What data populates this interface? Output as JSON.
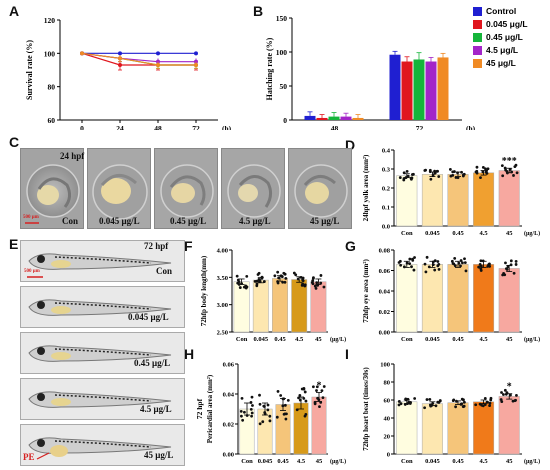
{
  "panel_letters": {
    "A": "A",
    "B": "B",
    "C": "C",
    "D": "D",
    "E": "E",
    "F": "F",
    "G": "G",
    "H": "H",
    "I": "I"
  },
  "legend": {
    "items": [
      {
        "label": "Control",
        "color": "#1f1fd1"
      },
      {
        "label": "0.045 μg/L",
        "color": "#e0161e"
      },
      {
        "label": "0.45 μg/L",
        "color": "#15b53a"
      },
      {
        "label": "4.5 μg/L",
        "color": "#a325c8"
      },
      {
        "label": "45 μg/L",
        "color": "#f08a24"
      }
    ]
  },
  "panel_C": {
    "time_label": "24 hpf",
    "scale_label": "500 μm",
    "labels": [
      "Con",
      "0.045 μg/L",
      "0.45 μg/L",
      "4.5 μg/L",
      "45 μg/L"
    ]
  },
  "panel_E": {
    "time_label": "72 hpf",
    "scale_label": "500 μm",
    "pe_label": "PE",
    "labels": [
      "Con",
      "0.045 μg/L",
      "0.45 μg/L",
      "4.5 μg/L",
      "45 μg/L"
    ]
  },
  "chart_data": [
    {
      "id": "A",
      "type": "line",
      "x": [
        0,
        24,
        48,
        72
      ],
      "x_ticks": [
        "0",
        "24",
        "48",
        "72"
      ],
      "x_unit": "(h)",
      "ylabel": "Survival rate (%)",
      "ylim": [
        60,
        120
      ],
      "yticks": [
        60,
        80,
        100,
        120
      ],
      "series": [
        {
          "name": "Control",
          "color": "#1f1fd1",
          "values": [
            100,
            100,
            100,
            100
          ],
          "err": [
            0,
            0,
            0,
            0
          ]
        },
        {
          "name": "0.045 μg/L",
          "color": "#e0161e",
          "values": [
            100,
            93,
            93,
            93
          ],
          "err": [
            0,
            3,
            3,
            3
          ]
        },
        {
          "name": "0.45 μg/L",
          "color": "#15b53a",
          "values": [
            100,
            97,
            93,
            93
          ],
          "err": [
            0,
            2,
            2,
            2
          ]
        },
        {
          "name": "4.5 μg/L",
          "color": "#a325c8",
          "values": [
            100,
            97,
            95,
            95
          ],
          "err": [
            0,
            2,
            2,
            2
          ]
        },
        {
          "name": "45 μg/L",
          "color": "#f08a24",
          "values": [
            100,
            97,
            93,
            93
          ],
          "err": [
            0,
            2,
            2,
            2
          ]
        }
      ]
    },
    {
      "id": "B",
      "type": "bar",
      "categories": [
        "48",
        "72"
      ],
      "x_unit": "(h)",
      "ylabel": "Hatching rate (%)",
      "ylim": [
        0,
        150
      ],
      "yticks": [
        0,
        50,
        100,
        150
      ],
      "series": [
        {
          "name": "Control",
          "color": "#1f1fd1",
          "values": [
            6,
            96
          ],
          "err": [
            6,
            5
          ]
        },
        {
          "name": "0.045 μg/L",
          "color": "#e0161e",
          "values": [
            3,
            86
          ],
          "err": [
            5,
            7
          ]
        },
        {
          "name": "0.45 μg/L",
          "color": "#15b53a",
          "values": [
            5,
            89
          ],
          "err": [
            6,
            10
          ]
        },
        {
          "name": "4.5 μg/L",
          "color": "#a325c8",
          "values": [
            5,
            86
          ],
          "err": [
            5,
            6
          ]
        },
        {
          "name": "45 μg/L",
          "color": "#f08a24",
          "values": [
            3,
            92
          ],
          "err": [
            5,
            6
          ]
        }
      ]
    },
    {
      "id": "D",
      "type": "bar",
      "categories": [
        "Con",
        "0.045",
        "0.45",
        "4.5",
        "45"
      ],
      "x_unit": "(μg/L)",
      "ylabel": "24hpf yolk area (mm²)",
      "ylim": [
        0,
        0.4
      ],
      "yticks": [
        0.0,
        0.1,
        0.2,
        0.3,
        0.4
      ],
      "decimals": 1,
      "colors": [
        "#fffde0",
        "#fde7b0",
        "#f5c57a",
        "#f0a030",
        "#f7a8a0"
      ],
      "values": [
        0.265,
        0.272,
        0.272,
        0.28,
        0.292
      ],
      "err": [
        0.01,
        0.012,
        0.012,
        0.012,
        0.012
      ],
      "annotations": [
        "",
        "",
        "",
        "",
        "***"
      ]
    },
    {
      "id": "F",
      "type": "bar",
      "categories": [
        "Con",
        "0.045",
        "0.45",
        "4.5",
        "45"
      ],
      "x_unit": "(μg/L)",
      "ylabel": "72hfp body length(mm)",
      "ylim": [
        2.5,
        4.0
      ],
      "yticks": [
        2.5,
        3.0,
        3.5,
        4.0
      ],
      "decimals": 2,
      "colors": [
        "#fffde0",
        "#fde7b0",
        "#f5c57a",
        "#d79a1a",
        "#f7a8a0"
      ],
      "values": [
        3.42,
        3.45,
        3.48,
        3.46,
        3.42
      ],
      "err": [
        0.05,
        0.05,
        0.05,
        0.05,
        0.05
      ],
      "annotations": [
        "",
        "",
        "",
        "",
        ""
      ]
    },
    {
      "id": "G",
      "type": "bar",
      "categories": [
        "Con",
        "0.045",
        "0.45",
        "4.5",
        "45"
      ],
      "x_unit": "(μg/L)",
      "ylabel": "72hfp eye area (mm²)",
      "ylim": [
        0,
        0.08
      ],
      "yticks": [
        0.0,
        0.02,
        0.04,
        0.06,
        0.08
      ],
      "decimals": 2,
      "colors": [
        "#fffde0",
        "#fde7b0",
        "#f5c57a",
        "#f07a1a",
        "#f7a8a0"
      ],
      "values": [
        0.066,
        0.066,
        0.066,
        0.066,
        0.062
      ],
      "err": [
        0.003,
        0.003,
        0.003,
        0.003,
        0.003
      ],
      "annotations": [
        "",
        "",
        "",
        "",
        ""
      ]
    },
    {
      "id": "H",
      "type": "bar",
      "categories": [
        "Con",
        "0.045",
        "0.45",
        "4.5",
        "45"
      ],
      "x_unit": "(μg/L)",
      "ylabel": "Pericardial area (mm²)",
      "ylabel2": "72 hpf",
      "ylim": [
        0,
        0.06
      ],
      "yticks": [
        0.0,
        0.02,
        0.04,
        0.06
      ],
      "decimals": 2,
      "colors": [
        "#fffde0",
        "#fde7b0",
        "#f5c57a",
        "#d79a1a",
        "#f7a8a0"
      ],
      "values": [
        0.03,
        0.03,
        0.033,
        0.034,
        0.038
      ],
      "err": [
        0.004,
        0.004,
        0.004,
        0.004,
        0.003
      ],
      "annotations": [
        "",
        "",
        "",
        "",
        "*"
      ]
    },
    {
      "id": "I",
      "type": "bar",
      "categories": [
        "Con",
        "0.045",
        "0.45",
        "4.5",
        "45"
      ],
      "x_unit": "(μg/L)",
      "ylabel": "72hfp heart beat (times/30s)",
      "ylim": [
        0,
        100
      ],
      "yticks": [
        0,
        20,
        40,
        60,
        80,
        100
      ],
      "decimals": 0,
      "colors": [
        "#fffde0",
        "#fde7b0",
        "#f5c57a",
        "#f07a1a",
        "#f7a8a0"
      ],
      "values": [
        58,
        56,
        57,
        58,
        64
      ],
      "err": [
        2,
        2,
        2,
        2,
        3
      ],
      "annotations": [
        "",
        "",
        "",
        "",
        "*"
      ]
    }
  ]
}
